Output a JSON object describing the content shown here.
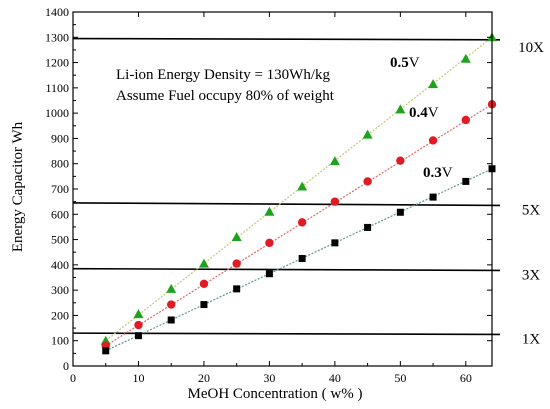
{
  "chart_data": {
    "type": "scatter",
    "title": "",
    "xlabel": "MeOH Concentration ( w% )",
    "ylabel": "Energy Capacitor Wh",
    "xlim": [
      0,
      64
    ],
    "ylim": [
      0,
      1400
    ],
    "xticks": [
      0,
      10,
      20,
      30,
      40,
      50,
      60
    ],
    "yticks": [
      0,
      100,
      200,
      300,
      400,
      500,
      600,
      700,
      800,
      900,
      1000,
      1100,
      1200,
      1300,
      1400
    ],
    "grid": false,
    "annotations": [
      "Li-ion Energy Density = 130Wh/kg",
      "Assume Fuel occupy 80% of weight"
    ],
    "series": [
      {
        "name_value": "0.5",
        "name_unit": "V",
        "marker": "triangle",
        "color": "#1fa31f",
        "line_color": "#c8cc7a",
        "x": [
          5,
          10,
          15,
          20,
          25,
          30,
          35,
          40,
          45,
          50,
          55,
          60,
          64
        ],
        "y": [
          100,
          205,
          305,
          405,
          510,
          610,
          710,
          810,
          915,
          1015,
          1115,
          1215,
          1300
        ]
      },
      {
        "name_value": "0.4",
        "name_unit": "V",
        "marker": "circle",
        "color": "#e01b24",
        "line_color": "#e07070",
        "x": [
          5,
          10,
          15,
          20,
          25,
          30,
          35,
          40,
          45,
          50,
          55,
          60,
          64
        ],
        "y": [
          80,
          162,
          243,
          325,
          405,
          487,
          568,
          650,
          730,
          812,
          892,
          973,
          1035
        ]
      },
      {
        "name_value": "0.3",
        "name_unit": "V",
        "marker": "square",
        "color": "#000000",
        "line_color": "#6e9a9a",
        "x": [
          5,
          10,
          15,
          20,
          25,
          30,
          35,
          40,
          45,
          50,
          55,
          60,
          64
        ],
        "y": [
          60,
          120,
          182,
          243,
          305,
          365,
          425,
          487,
          548,
          608,
          668,
          730,
          780
        ]
      }
    ],
    "reference_lines": [
      {
        "label": "10X",
        "y_left": 1295,
        "y_right": 1290
      },
      {
        "label": "5X",
        "y_left": 645,
        "y_right": 635
      },
      {
        "label": "3X",
        "y_left": 385,
        "y_right": 378
      },
      {
        "label": "1X",
        "y_left": 130,
        "y_right": 125
      }
    ]
  }
}
